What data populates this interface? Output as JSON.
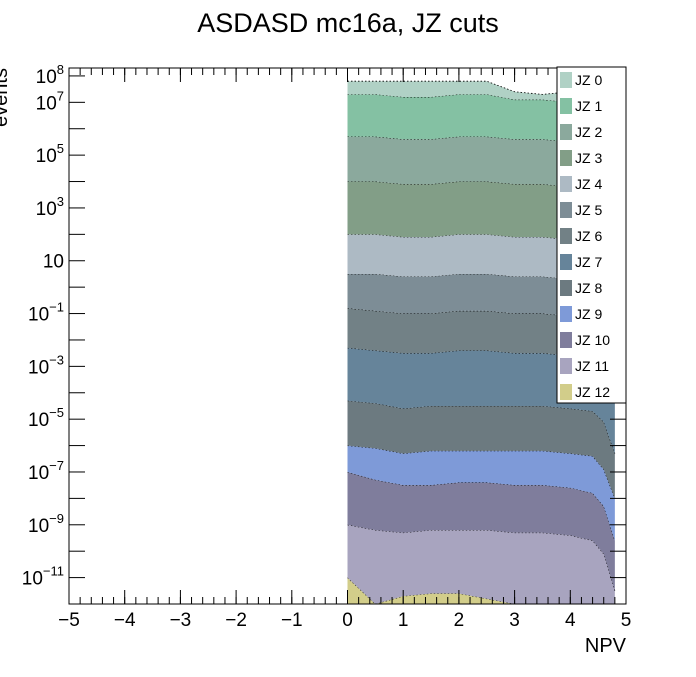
{
  "chart_data": {
    "type": "area",
    "stacked": true,
    "title": "ASDASD mc16a, JZ cuts",
    "xlabel": "NPV",
    "ylabel": "events",
    "xlim": [
      -5,
      5
    ],
    "ylim_log10": [
      -12,
      8.3
    ],
    "y_scale": "log",
    "x_ticks": [
      {
        "value": -5,
        "label": "−5"
      },
      {
        "value": -4,
        "label": "−4"
      },
      {
        "value": -3,
        "label": "−3"
      },
      {
        "value": -2,
        "label": "−2"
      },
      {
        "value": -1,
        "label": "−1"
      },
      {
        "value": 0,
        "label": "0"
      },
      {
        "value": 1,
        "label": "1"
      },
      {
        "value": 2,
        "label": "2"
      },
      {
        "value": 3,
        "label": "3"
      },
      {
        "value": 4,
        "label": "4"
      },
      {
        "value": 5,
        "label": "5"
      }
    ],
    "y_ticks": [
      {
        "exp": 8,
        "base": "10",
        "sup": "8"
      },
      {
        "exp": 7,
        "base": "10",
        "sup": "7"
      },
      {
        "exp": 5,
        "base": "10",
        "sup": "5"
      },
      {
        "exp": 3,
        "base": "10",
        "sup": "3"
      },
      {
        "exp": 1,
        "base": "10",
        "sup": ""
      },
      {
        "exp": -1,
        "base": "10",
        "sup": "−1"
      },
      {
        "exp": -3,
        "base": "10",
        "sup": "−3"
      },
      {
        "exp": -5,
        "base": "10",
        "sup": "−5"
      },
      {
        "exp": -7,
        "base": "10",
        "sup": "−7"
      },
      {
        "exp": -9,
        "base": "10",
        "sup": "−9"
      },
      {
        "exp": -11,
        "base": "10",
        "sup": "−11"
      }
    ],
    "x": [
      0.0,
      0.5,
      1.0,
      1.5,
      2.0,
      2.5,
      3.0,
      3.5,
      4.0,
      4.4,
      4.6,
      4.8
    ],
    "series_boundaries_log10_note": "Each series lists log10 of the stacked upper boundary at each x.",
    "series": [
      {
        "name": "JZ 12",
        "color": "#d2cd8a",
        "upper_log10": [
          -11.0,
          -12.0,
          -11.7,
          -11.6,
          -11.6,
          -11.8,
          -12.0,
          -12.0,
          -12.0,
          -12.0,
          -12.0,
          -12.0
        ]
      },
      {
        "name": "JZ 11",
        "color": "#a8a4bf",
        "upper_log10": [
          -9.0,
          -9.2,
          -9.3,
          -9.2,
          -9.2,
          -9.2,
          -9.3,
          -9.3,
          -9.4,
          -9.6,
          -10.1,
          -11.5
        ]
      },
      {
        "name": "JZ 10",
        "color": "#7f7d9c",
        "upper_log10": [
          -7.0,
          -7.3,
          -7.5,
          -7.5,
          -7.4,
          -7.4,
          -7.5,
          -7.5,
          -7.6,
          -7.8,
          -8.3,
          -9.6
        ]
      },
      {
        "name": "JZ 9",
        "color": "#7e9ad8",
        "upper_log10": [
          -6.0,
          -6.1,
          -6.3,
          -6.2,
          -6.2,
          -6.2,
          -6.2,
          -6.2,
          -6.3,
          -6.4,
          -6.9,
          -8.0
        ]
      },
      {
        "name": "JZ 8",
        "color": "#6c7a80",
        "upper_log10": [
          -4.3,
          -4.4,
          -4.6,
          -4.5,
          -4.5,
          -4.5,
          -4.5,
          -4.5,
          -4.6,
          -4.7,
          -5.1,
          -6.3
        ]
      },
      {
        "name": "JZ 7",
        "color": "#66849a",
        "upper_log10": [
          -2.3,
          -2.4,
          -2.5,
          -2.5,
          -2.4,
          -2.4,
          -2.5,
          -2.5,
          -2.6,
          -2.7,
          -3.1,
          -4.3
        ]
      },
      {
        "name": "JZ 6",
        "color": "#728186",
        "upper_log10": [
          -0.8,
          -0.9,
          -1.0,
          -1.0,
          -0.9,
          -0.9,
          -1.0,
          -1.0,
          -1.1,
          -1.2,
          -1.5,
          -2.6
        ]
      },
      {
        "name": "JZ 5",
        "color": "#7d8d96",
        "upper_log10": [
          0.5,
          0.5,
          0.4,
          0.4,
          0.5,
          0.5,
          0.4,
          0.4,
          0.3,
          0.2,
          -0.1,
          -1.0
        ]
      },
      {
        "name": "JZ 4",
        "color": "#adbac4",
        "upper_log10": [
          2.0,
          2.0,
          1.9,
          1.9,
          2.0,
          2.0,
          1.9,
          1.9,
          1.8,
          1.8,
          1.6,
          0.8
        ]
      },
      {
        "name": "JZ 3",
        "color": "#829e87",
        "upper_log10": [
          4.0,
          4.0,
          3.9,
          3.9,
          4.0,
          4.0,
          3.9,
          3.9,
          3.8,
          3.8,
          3.6,
          2.8
        ]
      },
      {
        "name": "JZ 2",
        "color": "#8ba99d",
        "upper_log10": [
          5.7,
          5.7,
          5.6,
          5.6,
          5.7,
          5.7,
          5.6,
          5.6,
          5.5,
          5.5,
          5.3,
          4.6
        ]
      },
      {
        "name": "JZ 1",
        "color": "#84c1a3",
        "upper_log10": [
          7.3,
          7.3,
          7.2,
          7.2,
          7.3,
          7.3,
          7.1,
          7.1,
          7.0,
          7.0,
          6.9,
          6.3
        ]
      },
      {
        "name": "JZ 0",
        "color": "#b0d1c5",
        "upper_log10": [
          7.8,
          7.8,
          7.8,
          7.8,
          7.8,
          7.8,
          7.4,
          7.3,
          7.4,
          7.5,
          7.3,
          6.8
        ]
      }
    ],
    "legend_position": "top-right",
    "grid": false
  }
}
